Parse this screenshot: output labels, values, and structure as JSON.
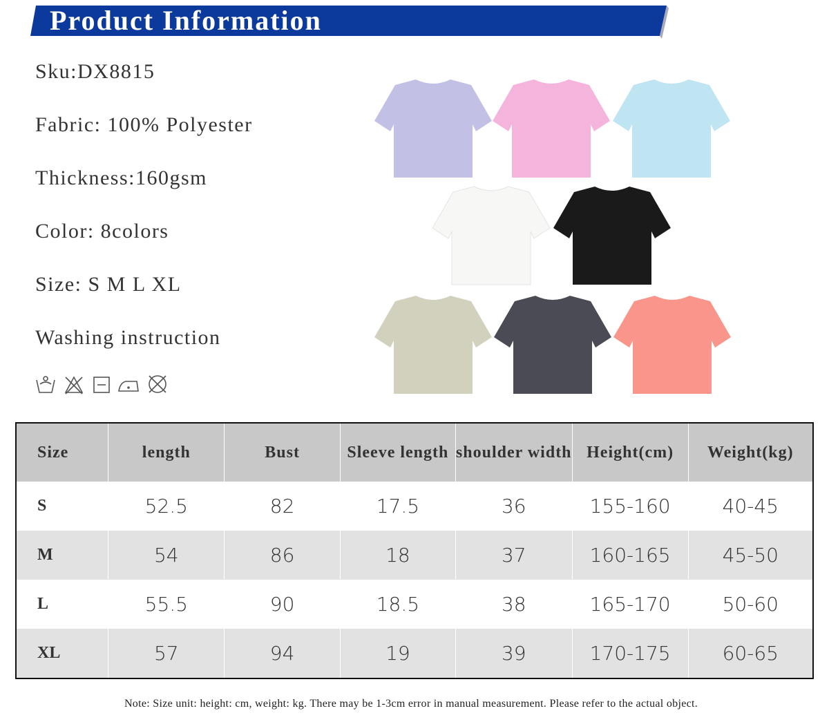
{
  "header": {
    "title": "Product Information"
  },
  "specs": [
    "Sku:DX8815",
    "Fabric: 100% Polyester",
    "Thickness:160gsm",
    "Color: 8colors",
    "Size: S M L XL",
    "Washing instruction"
  ],
  "table": {
    "columns": [
      "Size",
      "length",
      "Bust",
      "Sleeve length",
      "shoulder width",
      "Height(cm)",
      "Weight(kg)"
    ],
    "rows": [
      [
        "S",
        "52.5",
        "82",
        "17.5",
        "36",
        "155-160",
        "40-45"
      ],
      [
        "M",
        "54",
        "86",
        "18",
        "37",
        "160-165",
        "45-50"
      ],
      [
        "L",
        "55.5",
        "90",
        "18.5",
        "38",
        "165-170",
        "50-60"
      ],
      [
        "XL",
        "57",
        "94",
        "19",
        "39",
        "170-175",
        "60-65"
      ]
    ]
  },
  "note": "Note: Size unit: height: cm, weight: kg. There may be 1-3cm error in manual measurement. Please refer to the actual object."
}
